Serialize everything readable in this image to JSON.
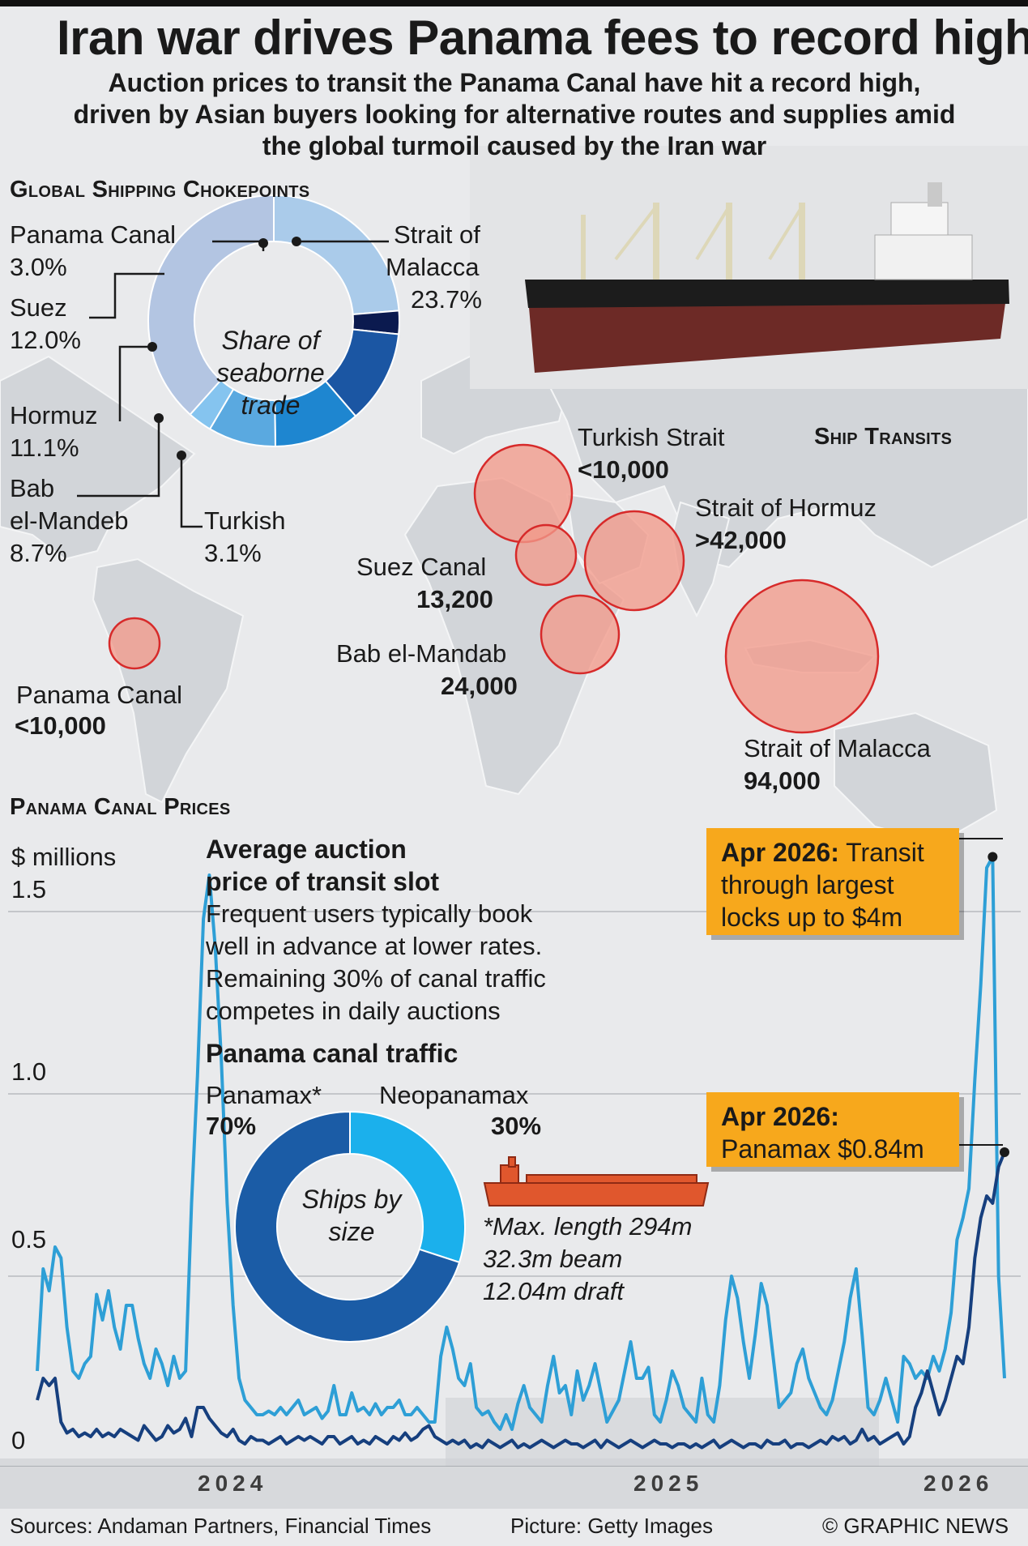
{
  "header": {
    "title": "Iran war drives Panama fees to record high",
    "subtitle": "Auction prices to transit the Panama Canal have hit a record high, driven by Asian buyers looking for alternative routes and supplies amid the global turmoil caused by the Iran war"
  },
  "chokepoints": {
    "section_title": "Global Shipping Chokepoints",
    "donut_center": "Share of seaborne trade",
    "labels": {
      "panama": {
        "name": "Panama Canal",
        "pct": "3.0%"
      },
      "suez": {
        "name": "Suez",
        "pct": "12.0%"
      },
      "hormuz": {
        "name": "Hormuz",
        "pct": "11.1%"
      },
      "bab1": "Bab",
      "bab2": "el-Mandeb",
      "bab_pct": "8.7%",
      "turkish": {
        "name": "Turkish",
        "pct": "3.1%"
      },
      "malacca1": "Strait of",
      "malacca2": "Malacca",
      "malacca_pct": "23.7%"
    }
  },
  "transits": {
    "section_title": "Ship Transits",
    "items": [
      {
        "name": "Turkish Strait",
        "value": "<10,000"
      },
      {
        "name": "Strait of Hormuz",
        "value": ">42,000"
      },
      {
        "name": "Suez Canal",
        "value": "13,200"
      },
      {
        "name": "Bab el-Mandab",
        "value": "24,000"
      },
      {
        "name": "Panama Canal",
        "value": "<10,000"
      },
      {
        "name": "Strait of Malacca",
        "value": "94,000"
      }
    ]
  },
  "prices": {
    "section_title": "Panama Canal Prices",
    "unit": "$ millions",
    "avg_title1": "Average auction",
    "avg_title2": "price of transit slot",
    "avg_text": [
      "Frequent users typically book",
      "well in advance at lower rates.",
      "Remaining 30% of canal traffic",
      "competes in daily auctions"
    ],
    "traffic_title": "Panama canal traffic",
    "panamax_label": "Panamax*",
    "panamax_pct": "70%",
    "neo_label": "Neopanamax",
    "neo_pct": "30%",
    "ships_center": "Ships by size",
    "note": [
      "*Max. length 294m",
      "32.3m beam",
      "12.04m draft"
    ],
    "callout1_bold": "Apr 2026:",
    "callout1_rest": " Transit",
    "callout1_lines": [
      "through largest",
      "locks up to $4m"
    ],
    "callout2_bold": "Apr 2026:",
    "callout2_line": "Panamax $0.84m"
  },
  "footer": {
    "sources": "Sources: Andaman Partners, Financial Times",
    "picture": "Picture: Getty Images",
    "credit": "© GRAPHIC NEWS"
  },
  "colors": {
    "series_transit": "#2e9fd6",
    "series_panamax": "#163f7e",
    "bubble_fill": "#f29a8a",
    "bubble_stroke": "#d72a2a",
    "callout": "#f7a81c"
  },
  "chart_data": [
    {
      "type": "pie",
      "title": "Share of seaborne trade",
      "categories": [
        "Strait of Malacca",
        "Panama Canal",
        "Suez",
        "Hormuz",
        "Bab el-Mandeb",
        "Turkish"
      ],
      "values": [
        23.7,
        3.0,
        12.0,
        11.1,
        8.7,
        3.1
      ],
      "colors": [
        "#aacbea",
        "#0b1a4f",
        "#1b56a3",
        "#1e86d0",
        "#5aa9e0",
        "#85c4ef"
      ]
    },
    {
      "type": "scatter",
      "title": "Ship Transits",
      "categories": [
        "Turkish Strait",
        "Strait of Hormuz",
        "Suez Canal",
        "Bab el-Mandab",
        "Panama Canal",
        "Strait of Malacca"
      ],
      "values": [
        "<10,000",
        ">42,000",
        "13,200",
        "24,000",
        "<10,000",
        "94,000"
      ]
    },
    {
      "type": "line",
      "title": "Average auction price of transit slot",
      "ylabel": "$ millions",
      "ylim": [
        0,
        1.65
      ],
      "yticks": [
        0,
        0.5,
        1.0,
        1.5
      ],
      "ytick_labels": [
        "0",
        "0.5",
        "1.0",
        "1.5"
      ],
      "xticks": [
        "2024",
        "2025",
        "2026"
      ],
      "x_range": [
        "2023-08",
        "2026-04"
      ],
      "series": [
        {
          "values": [
            0.24,
            0.52,
            0.46,
            0.58,
            0.55,
            0.36,
            0.24,
            0.22,
            0.26,
            0.28,
            0.45,
            0.38,
            0.46,
            0.36,
            0.3,
            0.42,
            0.42,
            0.33,
            0.26,
            0.22,
            0.3,
            0.26,
            0.2,
            0.28,
            0.22,
            0.24,
            0.7,
            1.05,
            1.48,
            1.6,
            1.4,
            1.1,
            0.7,
            0.42,
            0.22,
            0.16,
            0.14,
            0.12,
            0.12,
            0.13,
            0.12,
            0.14,
            0.12,
            0.14,
            0.16,
            0.12,
            0.13,
            0.14,
            0.11,
            0.13,
            0.2,
            0.12,
            0.12,
            0.18,
            0.13,
            0.14,
            0.12,
            0.15,
            0.12,
            0.14,
            0.14,
            0.16,
            0.12,
            0.12,
            0.14,
            0.12,
            0.1,
            0.1,
            0.28,
            0.36,
            0.3,
            0.22,
            0.2,
            0.26,
            0.14,
            0.12,
            0.13,
            0.1,
            0.08,
            0.12,
            0.08,
            0.15,
            0.2,
            0.14,
            0.12,
            0.1,
            0.2,
            0.28,
            0.18,
            0.2,
            0.12,
            0.24,
            0.16,
            0.2,
            0.26,
            0.18,
            0.1,
            0.13,
            0.16,
            0.24,
            0.32,
            0.22,
            0.22,
            0.25,
            0.12,
            0.1,
            0.16,
            0.24,
            0.2,
            0.14,
            0.12,
            0.1,
            0.22,
            0.12,
            0.1,
            0.2,
            0.38,
            0.5,
            0.44,
            0.32,
            0.22,
            0.34,
            0.48,
            0.42,
            0.28,
            0.14,
            0.16,
            0.18,
            0.26,
            0.3,
            0.22,
            0.18,
            0.14,
            0.12,
            0.16,
            0.24,
            0.32,
            0.44,
            0.52,
            0.34,
            0.14,
            0.12,
            0.16,
            0.22,
            0.16,
            0.1,
            0.28,
            0.26,
            0.22,
            0.24,
            0.22,
            0.28,
            0.24,
            0.3,
            0.4,
            0.6,
            0.66,
            0.74,
            1.04,
            1.3,
            1.62,
            1.65,
            0.5,
            0.22
          ],
          "color": "#2e9fd6"
        },
        {
          "values": [
            0.16,
            0.22,
            0.2,
            0.22,
            0.1,
            0.07,
            0.08,
            0.06,
            0.07,
            0.06,
            0.08,
            0.06,
            0.07,
            0.06,
            0.08,
            0.07,
            0.06,
            0.05,
            0.09,
            0.07,
            0.05,
            0.06,
            0.09,
            0.07,
            0.08,
            0.11,
            0.06,
            0.14,
            0.14,
            0.11,
            0.09,
            0.07,
            0.06,
            0.08,
            0.05,
            0.04,
            0.06,
            0.05,
            0.05,
            0.04,
            0.05,
            0.06,
            0.04,
            0.05,
            0.06,
            0.05,
            0.06,
            0.05,
            0.04,
            0.06,
            0.06,
            0.04,
            0.05,
            0.06,
            0.04,
            0.05,
            0.04,
            0.06,
            0.05,
            0.04,
            0.06,
            0.05,
            0.07,
            0.05,
            0.06,
            0.08,
            0.09,
            0.06,
            0.05,
            0.04,
            0.05,
            0.04,
            0.05,
            0.03,
            0.04,
            0.03,
            0.05,
            0.04,
            0.03,
            0.04,
            0.05,
            0.03,
            0.04,
            0.03,
            0.04,
            0.05,
            0.04,
            0.03,
            0.04,
            0.05,
            0.04,
            0.04,
            0.03,
            0.04,
            0.05,
            0.03,
            0.05,
            0.04,
            0.03,
            0.04,
            0.05,
            0.04,
            0.03,
            0.04,
            0.05,
            0.04,
            0.04,
            0.03,
            0.04,
            0.04,
            0.03,
            0.04,
            0.03,
            0.04,
            0.05,
            0.03,
            0.04,
            0.05,
            0.04,
            0.03,
            0.04,
            0.04,
            0.03,
            0.05,
            0.04,
            0.04,
            0.05,
            0.03,
            0.04,
            0.04,
            0.03,
            0.04,
            0.05,
            0.04,
            0.06,
            0.05,
            0.06,
            0.04,
            0.05,
            0.08,
            0.05,
            0.06,
            0.04,
            0.05,
            0.06,
            0.07,
            0.04,
            0.06,
            0.14,
            0.18,
            0.24,
            0.18,
            0.12,
            0.16,
            0.22,
            0.28,
            0.26,
            0.36,
            0.55,
            0.66,
            0.72,
            0.7,
            0.8,
            0.84
          ],
          "color": "#163f7e"
        }
      ]
    },
    {
      "type": "pie",
      "title": "Panama canal traffic",
      "categories": [
        "Panamax*",
        "Neopanamax"
      ],
      "values": [
        70,
        30
      ],
      "colors": [
        "#1b5ca6",
        "#1bb0ec"
      ]
    }
  ]
}
